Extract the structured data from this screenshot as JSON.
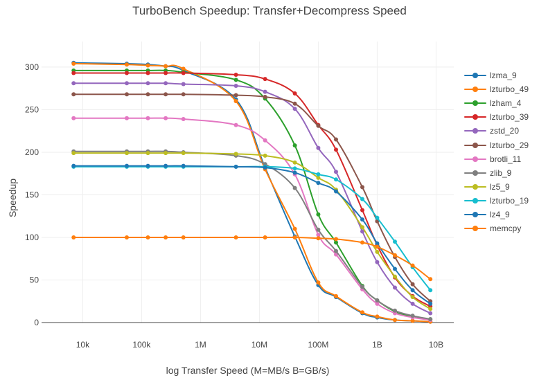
{
  "chart_data": {
    "type": "line",
    "title": "TurboBench Speedup: Transfer+Decompress Speed",
    "xlabel": "log Transfer Speed (M=MB/s B=GB/s)",
    "ylabel": "Speedup",
    "x_scale": "log",
    "x_unit": "bytes/s",
    "xlim": [
      2000,
      20000000000
    ],
    "ylim": [
      0,
      330
    ],
    "x_ticks": [
      {
        "value": 10000,
        "label": "10k"
      },
      {
        "value": 100000,
        "label": "100k"
      },
      {
        "value": 1000000,
        "label": "1M"
      },
      {
        "value": 10000000,
        "label": "10M"
      },
      {
        "value": 100000000,
        "label": "100M"
      },
      {
        "value": 1000000000,
        "label": "1B"
      },
      {
        "value": 10000000000,
        "label": "10B"
      }
    ],
    "y_ticks": [
      0,
      50,
      100,
      150,
      200,
      250,
      300
    ],
    "grid": true,
    "legend_position": "right",
    "x": [
      7000,
      56000,
      128000,
      256000,
      512000,
      4000000,
      12500000,
      40000000,
      100000000,
      200000000,
      560000000,
      1000000000,
      2000000000,
      4000000000,
      8000000000
    ],
    "series": [
      {
        "name": "lzma_9",
        "color": "#1f77b4",
        "values": [
          305,
          304,
          303,
          301,
          296,
          262,
          182,
          101,
          44,
          30,
          11,
          6,
          3,
          2,
          1
        ]
      },
      {
        "name": "lzturbo_49",
        "color": "#ff7f0e",
        "values": [
          304,
          303,
          302,
          301,
          298,
          260,
          180,
          110,
          47,
          31,
          12,
          7,
          3,
          2,
          1
        ]
      },
      {
        "name": "lzham_4",
        "color": "#2ca02c",
        "values": [
          296,
          296,
          296,
          296,
          294,
          285,
          263,
          208,
          127,
          94,
          43,
          26,
          13,
          7,
          4
        ]
      },
      {
        "name": "lzturbo_39",
        "color": "#d62728",
        "values": [
          293,
          293,
          293,
          293,
          293,
          291,
          286,
          269,
          232,
          203,
          132,
          91,
          53,
          31,
          19
        ]
      },
      {
        "name": "zstd_20",
        "color": "#9467bd",
        "values": [
          281,
          281,
          281,
          281,
          280,
          278,
          271,
          251,
          205,
          177,
          107,
          71,
          41,
          22,
          11
        ]
      },
      {
        "name": "lzturbo_29",
        "color": "#8c564b",
        "values": [
          268,
          268,
          268,
          268,
          268,
          267,
          265,
          257,
          231,
          215,
          159,
          119,
          77,
          45,
          25
        ]
      },
      {
        "name": "brotli_11",
        "color": "#e377c2",
        "values": [
          240,
          240,
          240,
          240,
          239,
          232,
          214,
          174,
          103,
          80,
          39,
          22,
          11,
          6,
          3
        ]
      },
      {
        "name": "zlib_9",
        "color": "#7f7f7f",
        "values": [
          201,
          201,
          201,
          201,
          200,
          196,
          186,
          158,
          109,
          84,
          42,
          26,
          14,
          8,
          4
        ]
      },
      {
        "name": "lz5_9",
        "color": "#bcbd22",
        "values": [
          199,
          199,
          199,
          199,
          199,
          198,
          196,
          188,
          170,
          156,
          112,
          83,
          54,
          30,
          16
        ]
      },
      {
        "name": "lzturbo_19",
        "color": "#17becf",
        "values": [
          183,
          183,
          183,
          183,
          183,
          183,
          183,
          181,
          174,
          168,
          145,
          123,
          95,
          65,
          38
        ]
      },
      {
        "name": "lz4_9",
        "color": "#1f77b4",
        "values": [
          184,
          184,
          184,
          184,
          184,
          183,
          182,
          176,
          164,
          154,
          121,
          93,
          63,
          38,
          22
        ]
      },
      {
        "name": "memcpy",
        "color": "#ff7f0e",
        "values": [
          100,
          100,
          100,
          100,
          100,
          100,
          100,
          100,
          99,
          98,
          94,
          89,
          79,
          67,
          51
        ]
      }
    ]
  }
}
